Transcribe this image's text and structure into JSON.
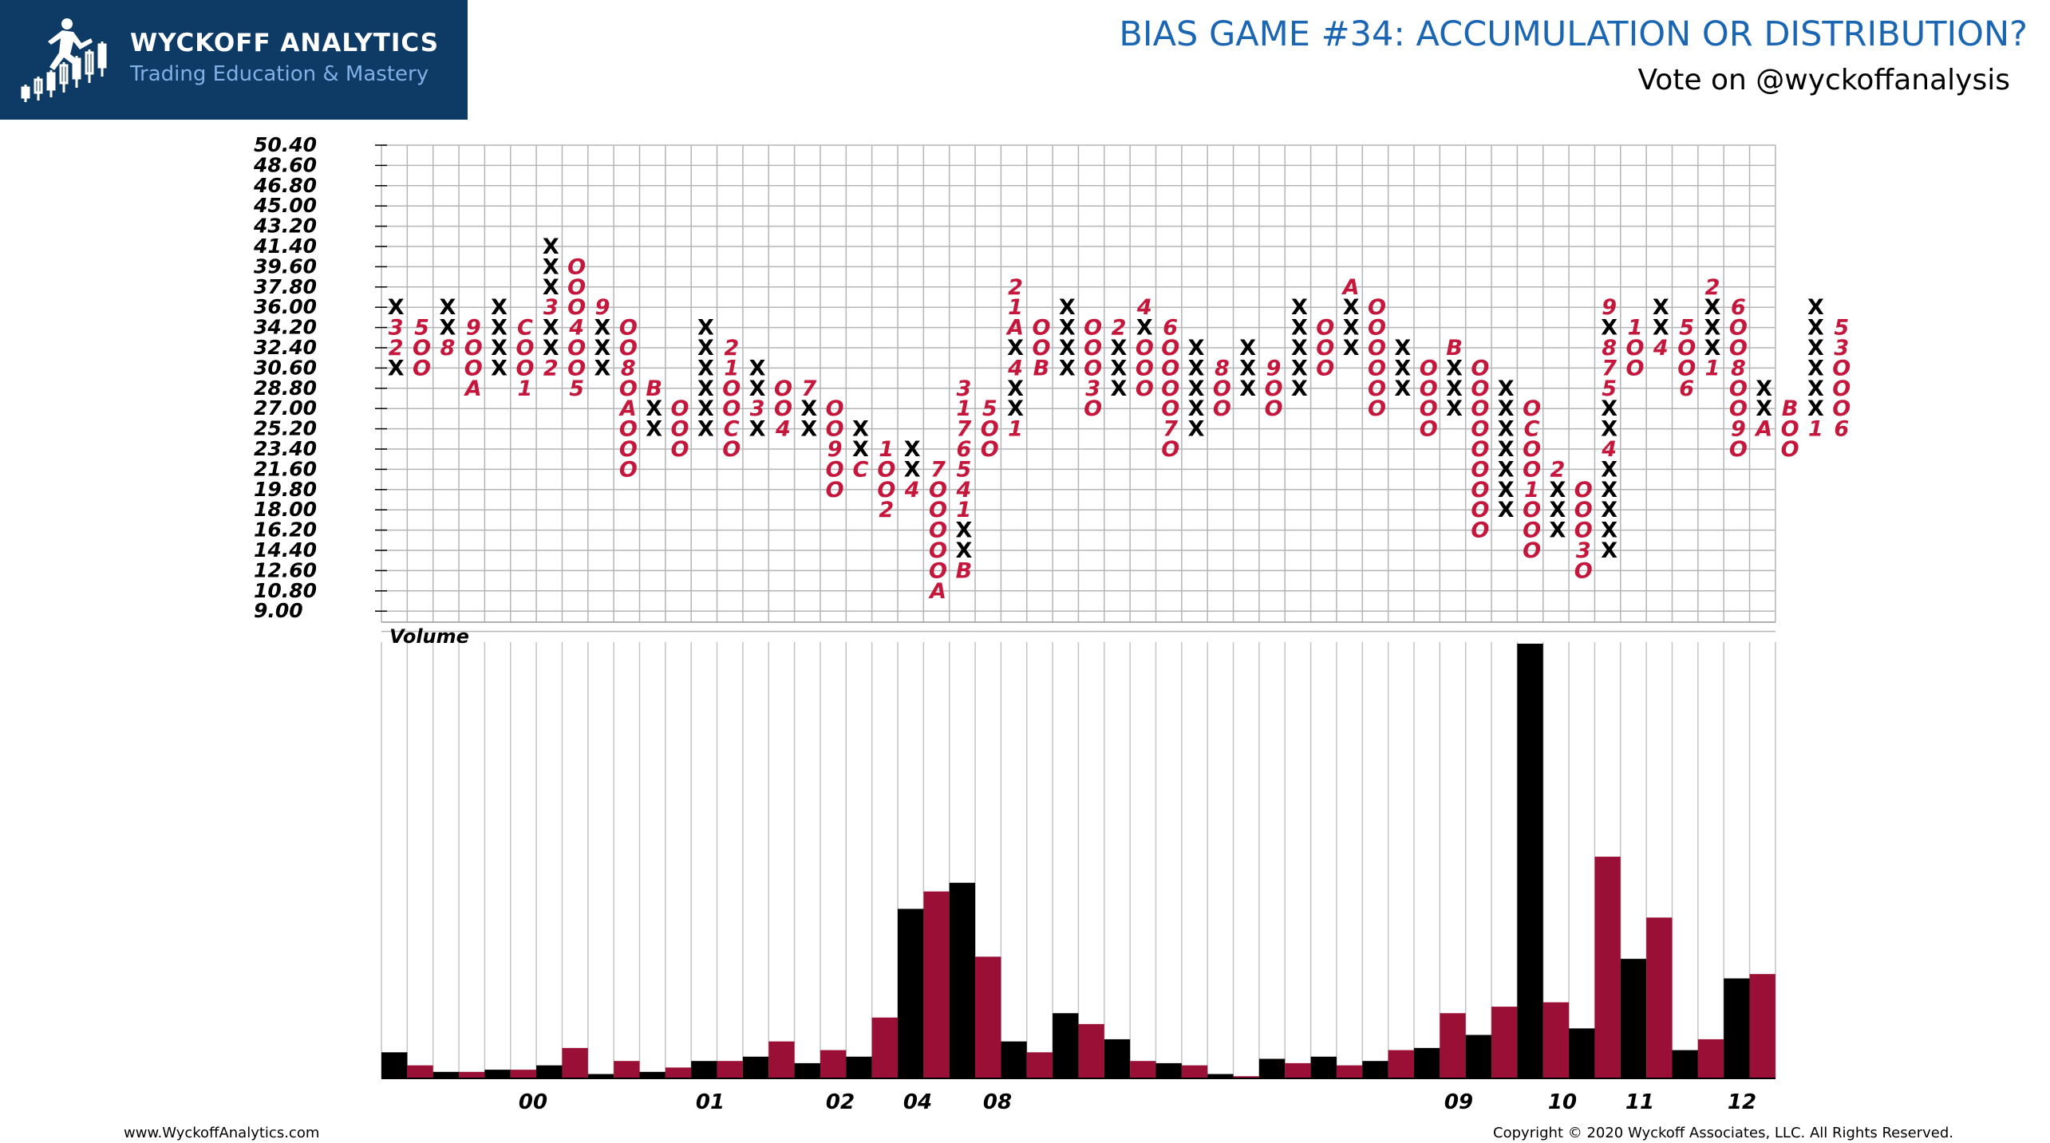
{
  "header": {
    "brand_title": "WYCKOFF ANALYTICS",
    "brand_subtitle": "Trading Education & Mastery",
    "logo_icon": "runner-candlestick-icon",
    "title": "BIAS GAME #34: ACCUMULATION OR DISTRIBUTION?",
    "subtitle": "Vote on @wyckoffanalysis"
  },
  "footer": {
    "website": "www.WyckoffAnalytics.com",
    "copyright": "Copyright © 2020 Wyckoff Associates, LLC. All Rights Reserved."
  },
  "colors": {
    "brand": "#0e3a66",
    "accent": "#1b66b3",
    "up": "#000000",
    "down": "#c5163c"
  },
  "chart_data": [
    {
      "type": "point-and-figure",
      "y_ticks": [
        "50.40",
        "48.60",
        "46.80",
        "45.00",
        "43.20",
        "41.40",
        "39.60",
        "37.80",
        "36.00",
        "34.20",
        "32.40",
        "30.60",
        "28.80",
        "27.00",
        "25.20",
        "23.40",
        "21.60",
        "19.80",
        "18.00",
        "16.20",
        "14.40",
        "12.60",
        "10.80",
        "9.00"
      ],
      "grid": true,
      "columns": [
        [
          "30.60|X",
          "32.40|2",
          "34.20|3",
          "36.00|X"
        ],
        [
          "34.20|5",
          "32.40|O",
          "30.60|O"
        ],
        [
          "32.40|8",
          "34.20|X",
          "36.00|X"
        ],
        [
          "34.20|9",
          "32.40|O",
          "30.60|O",
          "28.80|A"
        ],
        [
          "30.60|X",
          "32.40|X",
          "34.20|X",
          "36.00|X"
        ],
        [
          "34.20|C",
          "32.40|O",
          "30.60|O",
          "28.80|1"
        ],
        [
          "30.60|2",
          "32.40|X",
          "34.20|X",
          "36.00|3",
          "37.80|X",
          "39.60|X",
          "41.40|X"
        ],
        [
          "39.60|O",
          "37.80|O",
          "36.00|O",
          "34.20|4",
          "32.40|O",
          "30.60|O",
          "28.80|5"
        ],
        [
          "30.60|X",
          "32.40|X",
          "34.20|X",
          "36.00|9"
        ],
        [
          "34.20|O",
          "32.40|O",
          "30.60|8",
          "28.80|O",
          "27.00|A",
          "25.20|O",
          "23.40|O",
          "21.60|O"
        ],
        [
          "25.20|X",
          "27.00|X",
          "28.80|B"
        ],
        [
          "27.00|O",
          "25.20|O",
          "23.40|O"
        ],
        [
          "25.20|X",
          "27.00|X",
          "28.80|X",
          "30.60|X",
          "32.40|X",
          "34.20|X"
        ],
        [
          "32.40|2",
          "30.60|1",
          "28.80|O",
          "27.00|O",
          "25.20|C",
          "23.40|O"
        ],
        [
          "25.20|X",
          "27.00|3",
          "28.80|X",
          "30.60|X"
        ],
        [
          "28.80|O",
          "27.00|O",
          "25.20|4"
        ],
        [
          "25.20|X",
          "27.00|X",
          "28.80|7"
        ],
        [
          "27.00|O",
          "25.20|O",
          "23.40|9",
          "21.60|O",
          "19.80|O"
        ],
        [
          "21.60|C",
          "23.40|X",
          "25.20|X"
        ],
        [
          "23.40|1",
          "21.60|O",
          "19.80|O",
          "18.00|2"
        ],
        [
          "19.80|4",
          "21.60|X",
          "23.40|X"
        ],
        [
          "21.60|7",
          "19.80|O",
          "18.00|O",
          "16.20|O",
          "14.40|O",
          "12.60|O",
          "10.80|A"
        ],
        [
          "12.60|B",
          "14.40|X",
          "16.20|X",
          "18.00|1",
          "19.80|4",
          "21.60|5",
          "23.40|6",
          "25.20|7",
          "27.00|1",
          "28.80|3"
        ],
        [
          "27.00|5",
          "25.20|O",
          "23.40|O"
        ],
        [
          "25.20|1",
          "27.00|X",
          "28.80|X",
          "30.60|4",
          "32.40|X",
          "34.20|A",
          "36.00|1",
          "37.80|2"
        ],
        [
          "34.20|O",
          "32.40|O",
          "30.60|B"
        ],
        [
          "30.60|X",
          "32.40|X",
          "34.20|X",
          "36.00|X"
        ],
        [
          "34.20|O",
          "32.40|O",
          "30.60|O",
          "28.80|3",
          "27.00|O"
        ],
        [
          "28.80|X",
          "30.60|X",
          "32.40|X",
          "34.20|2"
        ],
        [
          "36.00|4",
          "34.20|X",
          "32.40|O",
          "30.60|O",
          "28.80|O"
        ],
        [
          "23.40|O",
          "25.20|7",
          "27.00|O",
          "28.80|O",
          "30.60|O",
          "32.40|O",
          "34.20|6"
        ],
        [
          "25.20|X",
          "27.00|X",
          "28.80|X",
          "30.60|X",
          "32.40|X"
        ],
        [
          "30.60|8",
          "28.80|O",
          "27.00|O"
        ],
        [
          "28.80|X",
          "30.60|X",
          "32.40|X"
        ],
        [
          "30.60|9",
          "28.80|O",
          "27.00|O"
        ],
        [
          "28.80|X",
          "30.60|X",
          "32.40|X",
          "34.20|X",
          "36.00|X"
        ],
        [
          "34.20|O",
          "32.40|O",
          "30.60|O"
        ],
        [
          "32.40|X",
          "34.20|X",
          "36.00|X",
          "37.80|A"
        ],
        [
          "36.00|O",
          "34.20|O",
          "32.40|O",
          "30.60|O",
          "28.80|O",
          "27.00|O"
        ],
        [
          "28.80|X",
          "30.60|X",
          "32.40|X"
        ],
        [
          "30.60|O",
          "28.80|O",
          "27.00|O",
          "25.20|O"
        ],
        [
          "27.00|X",
          "28.80|X",
          "30.60|X",
          "32.40|B"
        ],
        [
          "30.60|O",
          "28.80|O",
          "27.00|O",
          "25.20|O",
          "23.40|O",
          "21.60|O",
          "19.80|O",
          "18.00|O",
          "16.20|O"
        ],
        [
          "18.00|X",
          "19.80|X",
          "21.60|X",
          "23.40|X",
          "25.20|X",
          "27.00|X",
          "28.80|X"
        ],
        [
          "27.00|O",
          "25.20|C",
          "23.40|O",
          "21.60|O",
          "19.80|1",
          "18.00|O",
          "16.20|O",
          "14.40|O"
        ],
        [
          "16.20|X",
          "18.00|X",
          "19.80|X",
          "21.60|2"
        ],
        [
          "19.80|O",
          "18.00|O",
          "16.20|O",
          "14.40|3",
          "12.60|O"
        ],
        [
          "14.40|X",
          "16.20|X",
          "18.00|X",
          "19.80|X",
          "21.60|X",
          "23.40|4",
          "25.20|X",
          "27.00|X",
          "28.80|5",
          "30.60|7",
          "32.40|8",
          "34.20|X",
          "36.00|9"
        ],
        [
          "34.20|1",
          "32.40|O",
          "30.60|O"
        ],
        [
          "32.40|4",
          "34.20|X",
          "36.00|X"
        ],
        [
          "34.20|5",
          "32.40|O",
          "30.60|O",
          "28.80|6"
        ],
        [
          "30.60|1",
          "32.40|X",
          "34.20|X",
          "36.00|X",
          "37.80|2"
        ],
        [
          "36.00|6",
          "34.20|O",
          "32.40|O",
          "30.60|8",
          "28.80|O",
          "27.00|O",
          "25.20|9",
          "23.40|O"
        ],
        [
          "25.20|A",
          "27.00|X",
          "28.80|X"
        ],
        [
          "27.00|B",
          "25.20|O",
          "23.40|O"
        ],
        [
          "25.20|1",
          "27.00|X",
          "28.80|X",
          "30.60|X",
          "32.40|X",
          "34.20|X",
          "36.00|X"
        ],
        [
          "34.20|5",
          "32.40|3",
          "30.60|O",
          "28.80|O",
          "27.00|O",
          "25.20|6"
        ]
      ]
    },
    {
      "type": "bar",
      "title": "Volume",
      "ylim": [
        0,
        100
      ],
      "x_labels": [
        "00",
        "01",
        "02",
        "04",
        "08",
        "09",
        "10",
        "11",
        "12"
      ],
      "values": [
        6,
        3,
        1.5,
        1.5,
        2,
        2,
        3,
        7,
        1,
        4,
        1.5,
        2.5,
        4,
        4,
        5,
        8.5,
        3.5,
        6.5,
        5,
        14,
        39,
        43,
        45,
        28,
        8.5,
        6,
        15,
        12.5,
        9,
        4,
        3.5,
        3,
        1,
        0.5,
        4.5,
        3.5,
        5,
        3,
        4,
        6.5,
        7,
        15,
        10,
        16.5,
        100,
        17.5,
        11.5,
        51,
        27.5,
        37,
        6.5,
        9,
        23,
        24
      ],
      "bar_colors": [
        "#000000",
        "#9a0f35",
        "#000000",
        "#9a0f35",
        "#000000",
        "#9a0f35",
        "#000000",
        "#9a0f35",
        "#000000",
        "#9a0f35",
        "#000000",
        "#9a0f35",
        "#000000",
        "#9a0f35",
        "#000000",
        "#9a0f35",
        "#000000",
        "#9a0f35",
        "#000000",
        "#9a0f35",
        "#000000",
        "#9a0f35",
        "#000000",
        "#9a0f35",
        "#000000",
        "#9a0f35",
        "#000000",
        "#9a0f35",
        "#000000",
        "#9a0f35",
        "#000000",
        "#9a0f35",
        "#000000",
        "#9a0f35",
        "#000000",
        "#9a0f35",
        "#000000",
        "#9a0f35",
        "#000000",
        "#9a0f35",
        "#000000",
        "#9a0f35",
        "#000000",
        "#9a0f35",
        "#000000",
        "#9a0f35",
        "#000000",
        "#9a0f35",
        "#000000",
        "#9a0f35",
        "#000000",
        "#9a0f35",
        "#000000",
        "#9a0f35"
      ]
    }
  ]
}
